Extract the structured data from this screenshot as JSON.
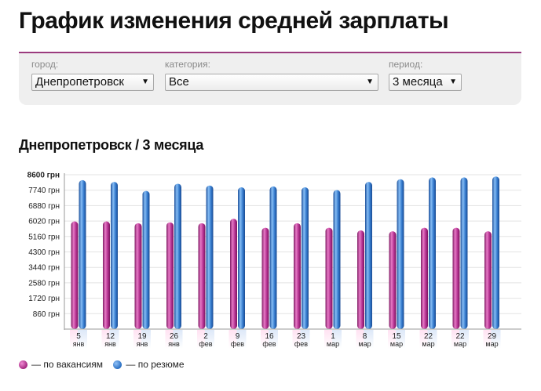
{
  "header": {
    "title": "График изменения средней зарплаты"
  },
  "filters": {
    "city": {
      "label": "город:",
      "value": "Днепропетровск"
    },
    "category": {
      "label": "категория:",
      "value": "Все"
    },
    "period": {
      "label": "период:",
      "value": "3 месяца"
    }
  },
  "chart_title": "Днепропетровск / 3 месяца",
  "legend": {
    "vacancies": "— по вакансиям",
    "resumes": "— по резюме"
  },
  "colors": {
    "accent": "#9b3b7e",
    "vacancies": "#b3308f",
    "resumes": "#3379cc"
  },
  "chart_data": {
    "type": "bar",
    "title": "Днепропетровск / 3 месяца",
    "xlabel": "",
    "ylabel": "",
    "ylim": [
      0,
      8600
    ],
    "y_ticks": [
      {
        "value": 860,
        "label": "860 грн"
      },
      {
        "value": 1720,
        "label": "1720 грн"
      },
      {
        "value": 2580,
        "label": "2580 грн"
      },
      {
        "value": 3440,
        "label": "3440 грн"
      },
      {
        "value": 4300,
        "label": "4300 грн"
      },
      {
        "value": 5160,
        "label": "5160 грн"
      },
      {
        "value": 6020,
        "label": "6020 грн"
      },
      {
        "value": 6880,
        "label": "6880 грн"
      },
      {
        "value": 7740,
        "label": "7740 грн"
      },
      {
        "value": 8600,
        "label": "8600 грн",
        "bold": true
      }
    ],
    "categories": [
      {
        "day": "5",
        "month": "янв"
      },
      {
        "day": "12",
        "month": "янв"
      },
      {
        "day": "19",
        "month": "янв"
      },
      {
        "day": "26",
        "month": "янв"
      },
      {
        "day": "2",
        "month": "фев"
      },
      {
        "day": "9",
        "month": "фев"
      },
      {
        "day": "16",
        "month": "фев"
      },
      {
        "day": "23",
        "month": "фев"
      },
      {
        "day": "1",
        "month": "мар"
      },
      {
        "day": "8",
        "month": "мар"
      },
      {
        "day": "15",
        "month": "мар"
      },
      {
        "day": "22",
        "month": "мар"
      },
      {
        "day": "22",
        "month": "мар"
      },
      {
        "day": "29",
        "month": "мар"
      }
    ],
    "series": [
      {
        "name": "— по вакансиям",
        "values": [
          6000,
          6000,
          5900,
          5950,
          5900,
          6150,
          5650,
          5900,
          5650,
          5500,
          5450,
          5650,
          5650,
          5450
        ]
      },
      {
        "name": "— по резюме",
        "values": [
          8300,
          8200,
          7700,
          8100,
          8000,
          7900,
          7950,
          7900,
          7750,
          8200,
          8350,
          8450,
          8450,
          8500
        ]
      }
    ],
    "grid": true,
    "legend_position": "bottom-left"
  }
}
